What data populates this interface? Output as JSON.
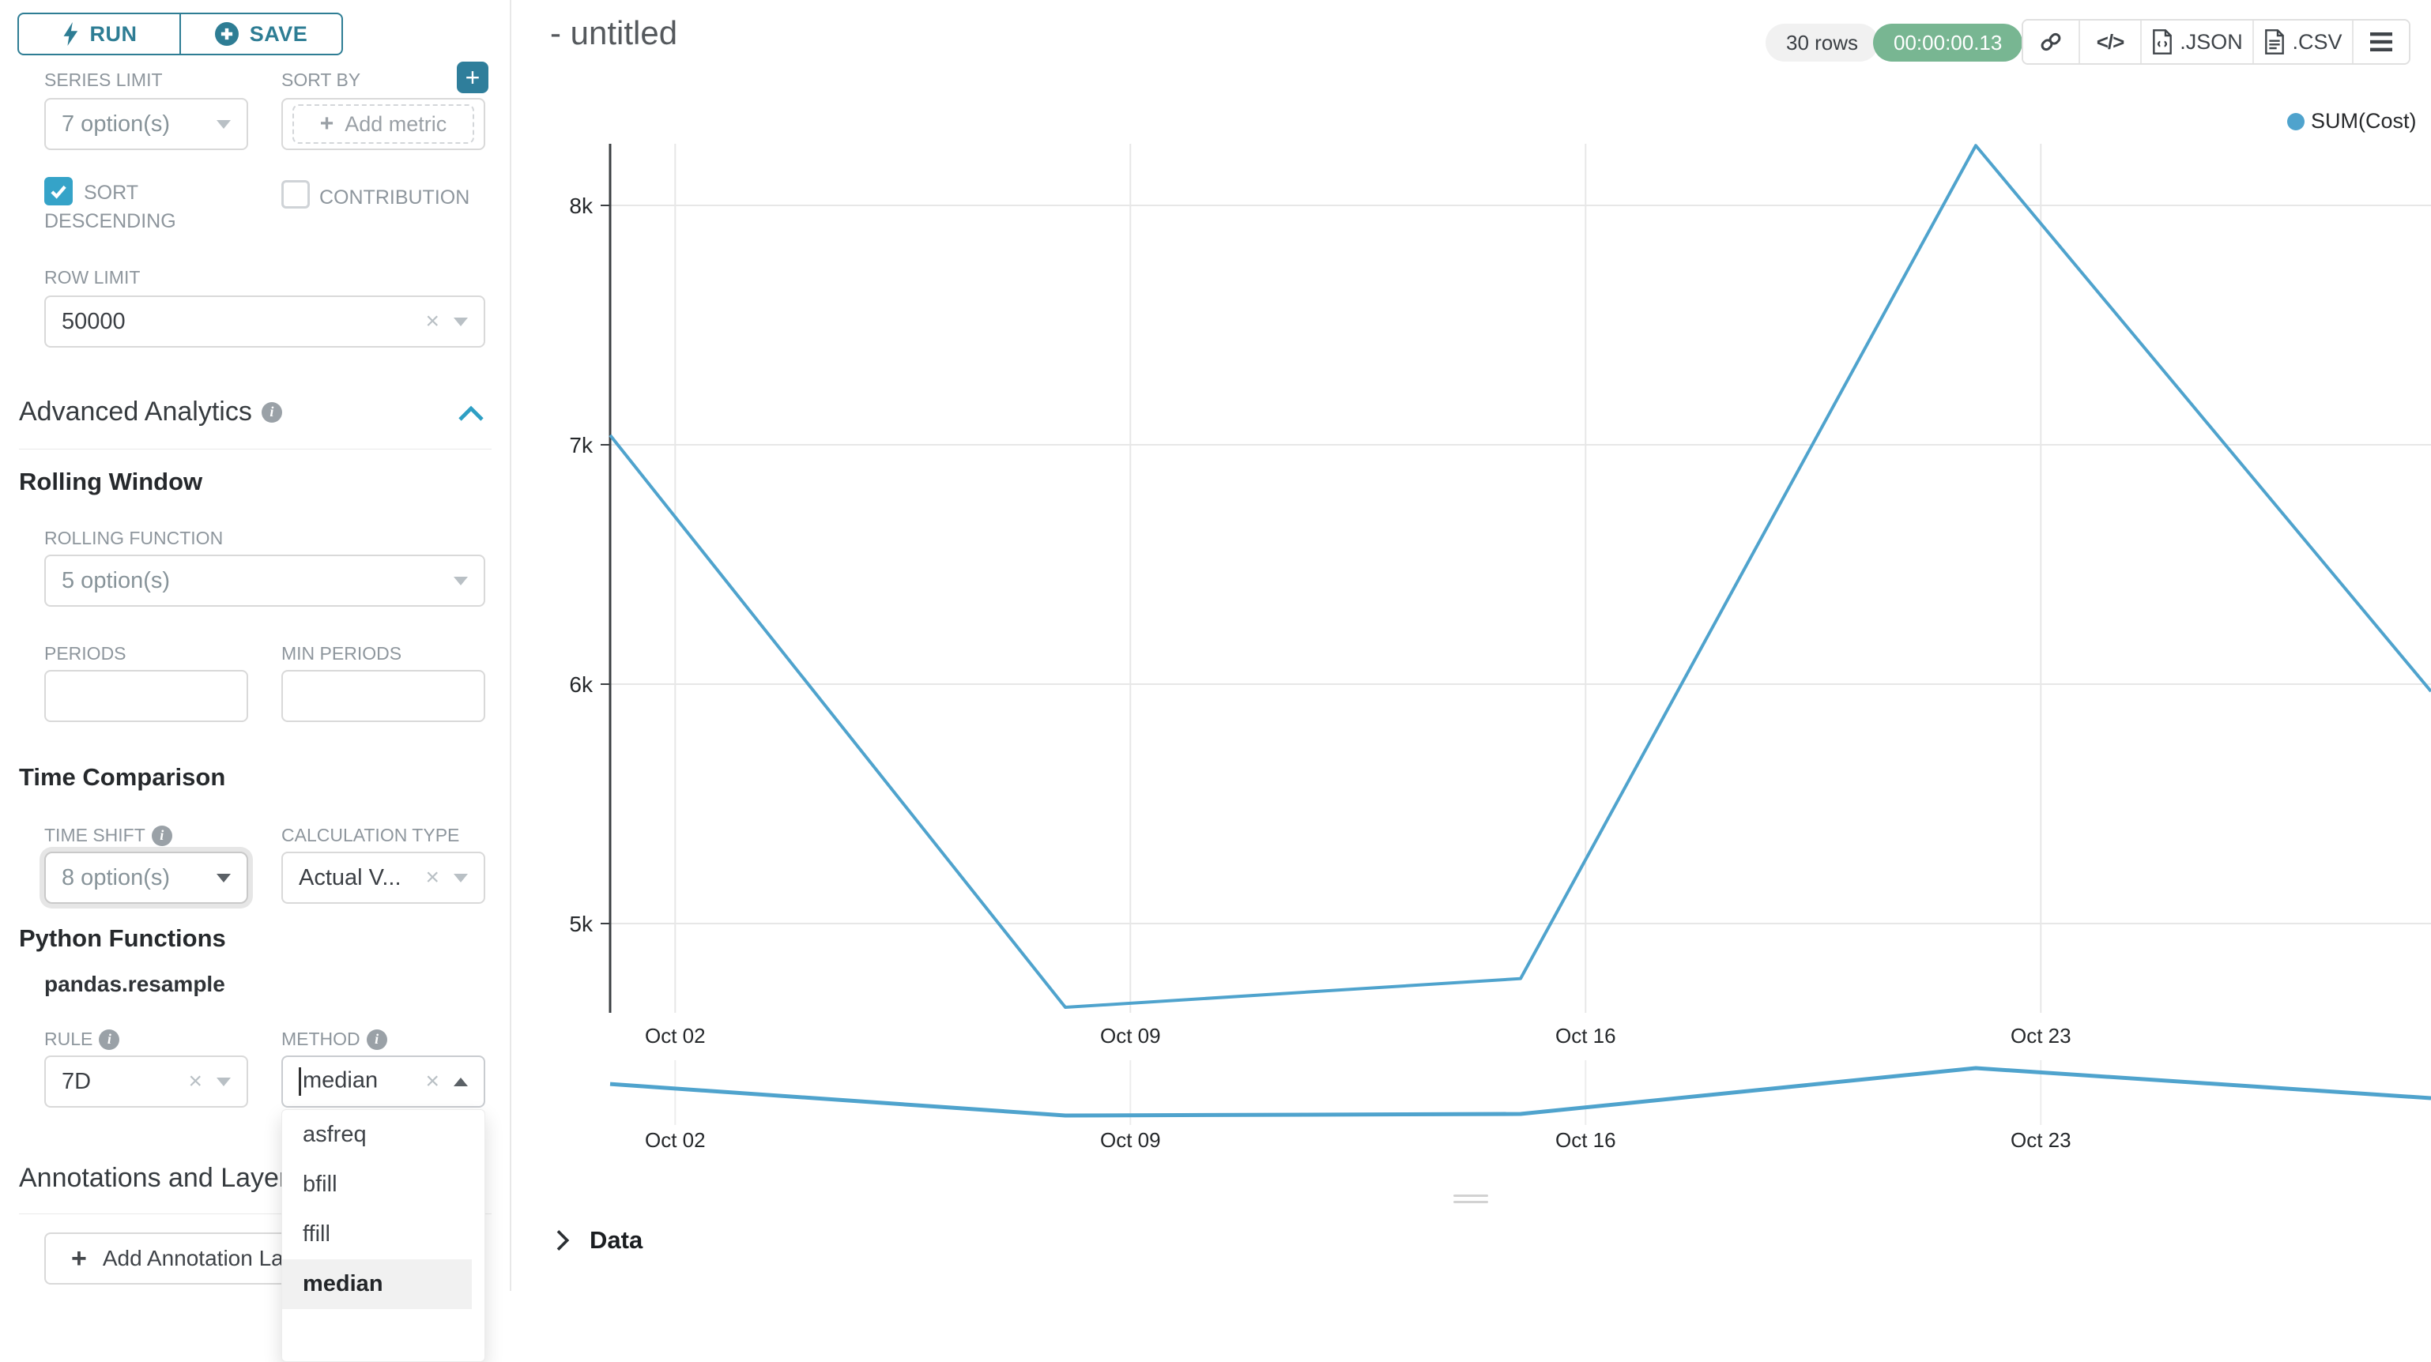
{
  "sidebar": {
    "run_label": "RUN",
    "save_label": "SAVE",
    "series_limit": {
      "label": "SERIES LIMIT",
      "value": "7 option(s)"
    },
    "sort_by": {
      "label": "SORT BY",
      "add_metric": "Add metric"
    },
    "sort_descending": {
      "label_line1": "SORT",
      "label_line2": "DESCENDING",
      "checked": true
    },
    "contribution": {
      "label": "CONTRIBUTION",
      "checked": false
    },
    "row_limit": {
      "label": "ROW LIMIT",
      "value": "50000"
    },
    "advanced_analytics_title": "Advanced Analytics",
    "rolling_window": {
      "title": "Rolling Window",
      "rolling_function": {
        "label": "ROLLING FUNCTION",
        "value": "5 option(s)"
      },
      "periods_label": "PERIODS",
      "min_periods_label": "MIN PERIODS"
    },
    "time_comparison": {
      "title": "Time Comparison",
      "time_shift": {
        "label": "TIME SHIFT",
        "value": "8 option(s)"
      },
      "calculation_type": {
        "label": "CALCULATION TYPE",
        "value": "Actual V..."
      }
    },
    "python_functions": {
      "title": "Python Functions",
      "subtitle": "pandas.resample",
      "rule": {
        "label": "RULE",
        "value": "7D"
      },
      "method": {
        "label": "METHOD",
        "value": "median",
        "options": [
          "asfreq",
          "bfill",
          "ffill",
          "median"
        ],
        "selected": "median"
      }
    },
    "annotations": {
      "title": "Annotations and Layers",
      "add_button": "Add Annotation Layer"
    }
  },
  "header": {
    "title": "- untitled",
    "rows_badge": "30 rows",
    "timer": "00:00:00.13",
    "export_json": ".JSON",
    "export_csv": ".CSV"
  },
  "data_panel": {
    "title": "Data"
  },
  "colors": {
    "accent_dark": "#2E7D94",
    "accent": "#35A3C8",
    "series_line": "#4FA3CD",
    "timer_green": "#78B692"
  },
  "chart_data": {
    "type": "line",
    "title": "",
    "legend": [
      {
        "name": "SUM(Cost)",
        "color": "#4FA3CD"
      }
    ],
    "point_labels": [
      "Oct 01",
      "Oct 08",
      "Oct 15",
      "Oct 22",
      "Oct 29"
    ],
    "point_days": [
      0,
      7,
      14,
      21,
      28
    ],
    "series": [
      {
        "name": "SUM(Cost)",
        "values": [
          7040,
          4650,
          4770,
          8250,
          5970
        ]
      }
    ],
    "x_ticks": [
      {
        "label": "Oct 02",
        "day": 1
      },
      {
        "label": "Oct 09",
        "day": 8
      },
      {
        "label": "Oct 16",
        "day": 15
      },
      {
        "label": "Oct 23",
        "day": 22
      }
    ],
    "y_ticks": [
      {
        "label": "8k",
        "value": 8000
      },
      {
        "label": "7k",
        "value": 7000
      },
      {
        "label": "6k",
        "value": 6000
      },
      {
        "label": "5k",
        "value": 5000
      }
    ],
    "ylim": [
      4640,
      8270
    ],
    "x_domain_days": [
      0,
      28
    ],
    "grid": true,
    "legend_position": "top-right",
    "has_range_selector_mini_chart": true
  }
}
